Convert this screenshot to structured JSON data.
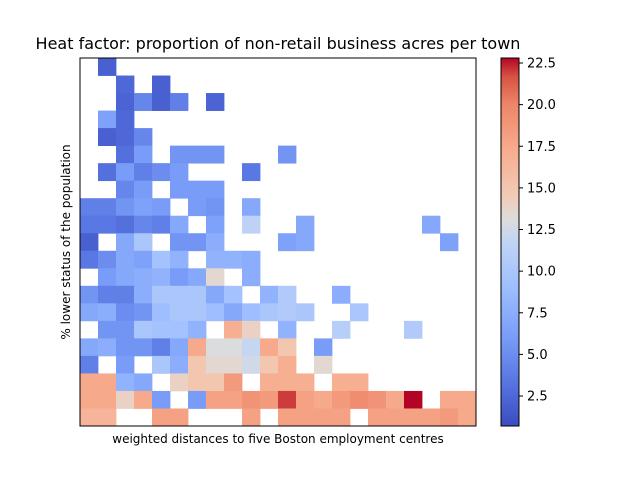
{
  "chart_data": {
    "type": "heatmap",
    "title": "Heat factor: proportion of non-retail business acres per town",
    "xlabel": "weighted distances to five Boston employment centres",
    "ylabel": "% lower status of the population",
    "colormap": "coolwarm",
    "colorbar": {
      "min": 0.7,
      "max": 22.8,
      "ticks": [
        "2.5",
        "5.0",
        "7.5",
        "10.0",
        "12.5",
        "15.0",
        "17.5",
        "20.0",
        "22.5"
      ]
    },
    "grid": false,
    "n_cols": 22,
    "n_rows": 21,
    "row_order": "top-to-bottom",
    "cells": [
      [
        null,
        2.0,
        null,
        null,
        null,
        null,
        null,
        null,
        null,
        null,
        null,
        null,
        null,
        null,
        null,
        null,
        null,
        null,
        null,
        null,
        null,
        null
      ],
      [
        null,
        null,
        2.5,
        null,
        2.0,
        null,
        null,
        null,
        null,
        null,
        null,
        null,
        null,
        null,
        null,
        null,
        null,
        null,
        null,
        null,
        null,
        null
      ],
      [
        null,
        null,
        2.2,
        4.5,
        2.0,
        4.0,
        null,
        2.2,
        null,
        null,
        null,
        null,
        null,
        null,
        null,
        null,
        null,
        null,
        null,
        null,
        null,
        null
      ],
      [
        null,
        6.5,
        2.5,
        null,
        null,
        null,
        null,
        null,
        null,
        null,
        null,
        null,
        null,
        null,
        null,
        null,
        null,
        null,
        null,
        null,
        null,
        null
      ],
      [
        null,
        2.0,
        2.5,
        4.5,
        null,
        null,
        null,
        null,
        null,
        null,
        null,
        null,
        null,
        null,
        null,
        null,
        null,
        null,
        null,
        null,
        null,
        null
      ],
      [
        null,
        null,
        3.0,
        6.0,
        null,
        5.5,
        5.5,
        5.5,
        null,
        null,
        null,
        5.5,
        null,
        null,
        null,
        null,
        null,
        null,
        null,
        null,
        null,
        null
      ],
      [
        null,
        3.0,
        6.0,
        4.0,
        5.0,
        6.0,
        null,
        null,
        null,
        3.5,
        null,
        null,
        null,
        null,
        null,
        null,
        null,
        null,
        null,
        null,
        null,
        null
      ],
      [
        null,
        null,
        4.5,
        6.0,
        null,
        6.0,
        6.0,
        6.0,
        null,
        null,
        null,
        null,
        null,
        null,
        null,
        null,
        null,
        null,
        null,
        null,
        null,
        null
      ],
      [
        4.0,
        4.0,
        5.5,
        6.5,
        6.0,
        null,
        6.0,
        5.5,
        null,
        7.0,
        null,
        null,
        null,
        null,
        null,
        null,
        null,
        null,
        null,
        null,
        null,
        null
      ],
      [
        3.5,
        3.5,
        3.0,
        4.5,
        4.0,
        7.0,
        null,
        6.5,
        null,
        11.5,
        null,
        null,
        7.0,
        null,
        null,
        null,
        null,
        null,
        null,
        7.0,
        null,
        null
      ],
      [
        2.0,
        null,
        7.0,
        10.0,
        null,
        5.5,
        5.5,
        7.5,
        null,
        null,
        null,
        6.5,
        7.0,
        null,
        null,
        null,
        null,
        null,
        null,
        null,
        6.5,
        null
      ],
      [
        3.5,
        5.0,
        7.0,
        6.5,
        9.5,
        8.0,
        null,
        8.0,
        8.0,
        7.5,
        null,
        null,
        null,
        null,
        null,
        null,
        null,
        null,
        null,
        null,
        null,
        null
      ],
      [
        null,
        6.0,
        7.0,
        7.5,
        8.0,
        6.0,
        7.0,
        13.5,
        null,
        7.5,
        null,
        null,
        null,
        null,
        null,
        null,
        null,
        null,
        null,
        null,
        null,
        null
      ],
      [
        5.5,
        4.0,
        4.0,
        7.5,
        10.0,
        10.0,
        10.0,
        7.0,
        9.5,
        null,
        8.0,
        10.5,
        null,
        null,
        7.5,
        null,
        null,
        null,
        null,
        null,
        null,
        null
      ],
      [
        7.0,
        7.5,
        5.0,
        5.5,
        9.0,
        10.0,
        10.0,
        9.0,
        7.0,
        9.0,
        10.0,
        10.5,
        10.0,
        null,
        null,
        10.0,
        null,
        null,
        null,
        null,
        null,
        null
      ],
      [
        null,
        5.5,
        5.5,
        10.0,
        9.5,
        9.5,
        8.0,
        null,
        17.0,
        14.0,
        null,
        8.0,
        null,
        null,
        11.0,
        null,
        null,
        null,
        10.5,
        null,
        null,
        null
      ],
      [
        7.0,
        7.5,
        5.5,
        5.5,
        4.0,
        7.0,
        17.5,
        13.0,
        13.0,
        12.0,
        17.5,
        15.0,
        null,
        6.0,
        null,
        null,
        null,
        null,
        null,
        null,
        null,
        null
      ],
      [
        4.0,
        null,
        6.0,
        null,
        10.0,
        7.5,
        15.0,
        13.5,
        13.5,
        12.5,
        15.0,
        17.0,
        null,
        13.5,
        null,
        null,
        null,
        null,
        null,
        null,
        null,
        null
      ],
      [
        17.5,
        17.5,
        8.0,
        7.0,
        null,
        14.0,
        15.0,
        15.0,
        18.5,
        null,
        17.0,
        17.0,
        17.0,
        null,
        17.0,
        17.0,
        null,
        null,
        null,
        null,
        null,
        null
      ],
      [
        17.5,
        17.5,
        14.0,
        17.5,
        6.0,
        null,
        6.0,
        18.0,
        18.0,
        19.0,
        18.5,
        22.0,
        18.0,
        17.5,
        18.5,
        19.5,
        19.0,
        17.5,
        22.8,
        null,
        17.5,
        17.5
      ],
      [
        16.5,
        16.5,
        null,
        null,
        18.0,
        18.0,
        null,
        null,
        null,
        18.0,
        null,
        18.0,
        18.0,
        18.0,
        18.0,
        null,
        18.0,
        18.0,
        18.0,
        18.0,
        18.5,
        17.5
      ]
    ]
  }
}
